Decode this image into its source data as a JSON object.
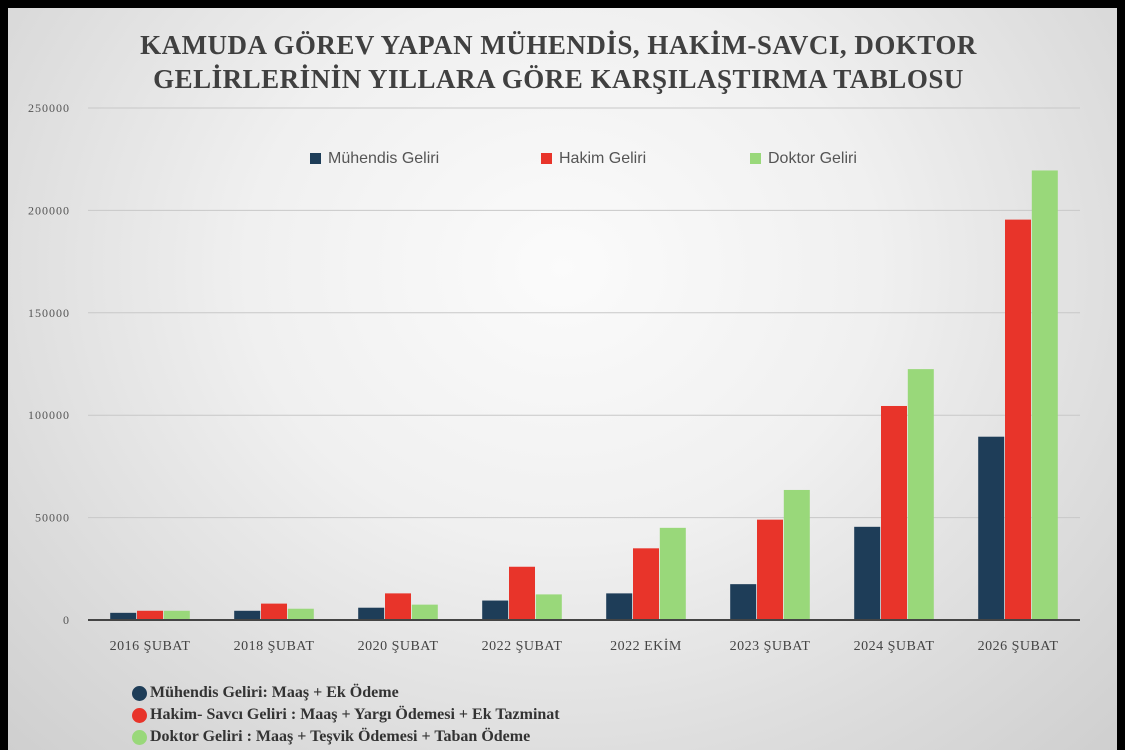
{
  "chart_data": {
    "type": "bar",
    "title_lines": [
      "KAMUDA GÖREV YAPAN MÜHENDİS, HAKİM-SAVCI, DOKTOR",
      "GELİRLERİNİN YILLARA GÖRE KARŞILAŞTIRMA TABLOSU"
    ],
    "categories": [
      "2016 ŞUBAT",
      "2018 ŞUBAT",
      "2020 ŞUBAT",
      "2022 ŞUBAT",
      "2022 EKİM",
      "2023 ŞUBAT",
      "2024 ŞUBAT",
      "2026 ŞUBAT"
    ],
    "series": [
      {
        "name": "Mühendis Geliri",
        "color": "#1e3d58",
        "values": [
          3500,
          4500,
          6000,
          9500,
          13000,
          17500,
          45500,
          89500
        ]
      },
      {
        "name": "Hakim Geliri",
        "color": "#e8342a",
        "values": [
          4500,
          8000,
          13000,
          26000,
          35000,
          49000,
          104500,
          195500
        ]
      },
      {
        "name": "Doktor Geliri",
        "color": "#99d87a",
        "values": [
          4500,
          5500,
          7500,
          12500,
          45000,
          63500,
          122500,
          219500
        ]
      }
    ],
    "ylim": [
      0,
      250000
    ],
    "yticks": [
      "0",
      "50000",
      "100000",
      "150000",
      "200000",
      "250000"
    ],
    "grid": true,
    "legend_position": "top"
  },
  "notes": [
    {
      "text": "Mühendis Geliri: Maaş + Ek Ödeme",
      "color": "#1e3d58"
    },
    {
      "text": "Hakim- Savcı Geliri : Maaş + Yargı Ödemesi + Ek Tazminat",
      "color": "#e8342a"
    },
    {
      "text": "Doktor Geliri : Maaş + Teşvik Ödemesi + Taban  Ödeme",
      "color": "#99d87a"
    }
  ]
}
